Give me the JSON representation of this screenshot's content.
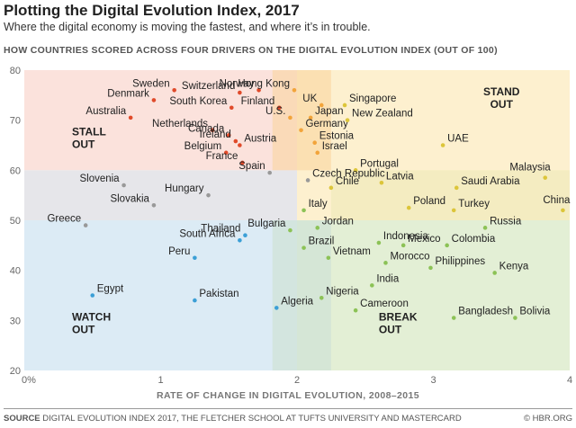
{
  "header": {
    "title": "Plotting the Digital Evolution Index, 2017",
    "subtitle": "Where the digital economy is moving the fastest, and where it’s in trouble.",
    "chart_heading": "HOW COUNTRIES SCORED ACROSS FOUR DRIVERS ON THE DIGITAL EVOLUTION INDEX (OUT OF 100)"
  },
  "footer": {
    "source_label": "SOURCE",
    "source_text": "DIGITAL EVOLUTION INDEX 2017, THE FLETCHER SCHOOL AT TUFTS UNIVERSITY AND MASTERCARD",
    "credit": "© HBR.ORG"
  },
  "colors": {
    "stall": "#fbe2dc",
    "stand": "#fdf0cf",
    "watch": "#dcebf5",
    "break": "#e3efd5",
    "red_dot": "#e04a2a",
    "orange_dot": "#f2a43a",
    "gold_dot": "#dcc53a",
    "green_dot": "#8cc256",
    "blue_dot": "#3b9fd6"
  },
  "chart_data": {
    "type": "scatter",
    "xlabel": "RATE OF CHANGE IN DIGITAL EVOLUTION, 2008–2015",
    "ylabel": "",
    "xlim": [
      0,
      4
    ],
    "ylim": [
      20,
      80
    ],
    "x_ticks": [
      "0%",
      "1",
      "2",
      "3",
      "4"
    ],
    "y_ticks": [
      "20",
      "30",
      "40",
      "50",
      "60",
      "70",
      "80"
    ],
    "quadrants": [
      "STALL OUT",
      "STAND OUT",
      "WATCH OUT",
      "BREAK OUT"
    ],
    "points": [
      {
        "name": "Sweden",
        "x": 1.1,
        "y": 76,
        "group": "stall"
      },
      {
        "name": "Switzerland",
        "x": 1.58,
        "y": 75.5,
        "group": "stall"
      },
      {
        "name": "Norway",
        "x": 1.72,
        "y": 76,
        "group": "stall"
      },
      {
        "name": "Denmark",
        "x": 0.95,
        "y": 74,
        "group": "stall"
      },
      {
        "name": "South Korea",
        "x": 1.52,
        "y": 72.5,
        "group": "stall"
      },
      {
        "name": "Finland",
        "x": 1.87,
        "y": 72.5,
        "group": "stall"
      },
      {
        "name": "Australia",
        "x": 0.78,
        "y": 70.5,
        "group": "stall"
      },
      {
        "name": "Netherlands",
        "x": 1.38,
        "y": 68,
        "group": "stall"
      },
      {
        "name": "Canada",
        "x": 1.5,
        "y": 67,
        "group": "stall"
      },
      {
        "name": "Ireland",
        "x": 1.55,
        "y": 65.8,
        "group": "stall"
      },
      {
        "name": "Austria",
        "x": 1.58,
        "y": 65,
        "group": "stall"
      },
      {
        "name": "Belgium",
        "x": 1.48,
        "y": 63.5,
        "group": "stall"
      },
      {
        "name": "France",
        "x": 1.6,
        "y": 61.5,
        "group": "stall"
      },
      {
        "name": "Hong Kong",
        "x": 1.98,
        "y": 76,
        "group": "stand"
      },
      {
        "name": "UK",
        "x": 2.18,
        "y": 73,
        "group": "stand"
      },
      {
        "name": "U.S.",
        "x": 1.95,
        "y": 70.5,
        "group": "stand"
      },
      {
        "name": "Japan",
        "x": 2.1,
        "y": 70.5,
        "group": "stand"
      },
      {
        "name": "Germany",
        "x": 2.03,
        "y": 68,
        "group": "stand"
      },
      {
        "name": "Estonia",
        "x": 2.13,
        "y": 65.5,
        "group": "stand"
      },
      {
        "name": "Israel",
        "x": 2.15,
        "y": 63.5,
        "group": "stand"
      },
      {
        "name": "Singapore",
        "x": 2.35,
        "y": 73,
        "group": "gold"
      },
      {
        "name": "New Zealand",
        "x": 2.37,
        "y": 70,
        "group": "gold"
      },
      {
        "name": "UAE",
        "x": 3.07,
        "y": 65,
        "group": "gold"
      },
      {
        "name": "Portugal",
        "x": 2.43,
        "y": 60,
        "group": "gold"
      },
      {
        "name": "Latvia",
        "x": 2.62,
        "y": 57.5,
        "group": "gold"
      },
      {
        "name": "Chile",
        "x": 2.25,
        "y": 56.5,
        "group": "gold"
      },
      {
        "name": "Malaysia",
        "x": 3.82,
        "y": 58.5,
        "group": "gold"
      },
      {
        "name": "Saudi Arabia",
        "x": 3.17,
        "y": 56.5,
        "group": "gold"
      },
      {
        "name": "Poland",
        "x": 2.82,
        "y": 52.5,
        "group": "gold"
      },
      {
        "name": "Turkey",
        "x": 3.15,
        "y": 52,
        "group": "gold"
      },
      {
        "name": "China",
        "x": 3.95,
        "y": 52,
        "group": "gold"
      },
      {
        "name": "Spain",
        "x": 1.8,
        "y": 59.5,
        "group": "gray"
      },
      {
        "name": "Czech Republic",
        "x": 2.08,
        "y": 58,
        "group": "gray"
      },
      {
        "name": "Slovenia",
        "x": 0.73,
        "y": 57,
        "group": "gray"
      },
      {
        "name": "Hungary",
        "x": 1.35,
        "y": 55,
        "group": "gray"
      },
      {
        "name": "Slovakia",
        "x": 0.95,
        "y": 53,
        "group": "gray"
      },
      {
        "name": "Greece",
        "x": 0.45,
        "y": 49,
        "group": "gray"
      },
      {
        "name": "Italy",
        "x": 2.05,
        "y": 52,
        "group": "green"
      },
      {
        "name": "Jordan",
        "x": 2.15,
        "y": 48.5,
        "group": "green"
      },
      {
        "name": "Bulgaria",
        "x": 1.95,
        "y": 48,
        "group": "green"
      },
      {
        "name": "Brazil",
        "x": 2.05,
        "y": 44.5,
        "group": "green"
      },
      {
        "name": "Russia",
        "x": 3.38,
        "y": 48.5,
        "group": "green"
      },
      {
        "name": "Indonesia",
        "x": 2.6,
        "y": 45.5,
        "group": "green"
      },
      {
        "name": "Mexico",
        "x": 2.78,
        "y": 45,
        "group": "green"
      },
      {
        "name": "Colombia",
        "x": 3.1,
        "y": 45,
        "group": "green"
      },
      {
        "name": "Vietnam",
        "x": 2.23,
        "y": 42.5,
        "group": "green"
      },
      {
        "name": "Morocco",
        "x": 2.65,
        "y": 41.5,
        "group": "green"
      },
      {
        "name": "Philippines",
        "x": 2.98,
        "y": 40.5,
        "group": "green"
      },
      {
        "name": "Kenya",
        "x": 3.45,
        "y": 39.5,
        "group": "green"
      },
      {
        "name": "India",
        "x": 2.55,
        "y": 37,
        "group": "green"
      },
      {
        "name": "Nigeria",
        "x": 2.18,
        "y": 34.5,
        "group": "green"
      },
      {
        "name": "Cameroon",
        "x": 2.43,
        "y": 32,
        "group": "green"
      },
      {
        "name": "Bangladesh",
        "x": 3.15,
        "y": 30.5,
        "group": "green"
      },
      {
        "name": "Bolivia",
        "x": 3.6,
        "y": 30.5,
        "group": "green"
      },
      {
        "name": "Thailand",
        "x": 1.62,
        "y": 47,
        "group": "blue"
      },
      {
        "name": "South Africa",
        "x": 1.58,
        "y": 46,
        "group": "blue"
      },
      {
        "name": "Peru",
        "x": 1.25,
        "y": 42.5,
        "group": "blue"
      },
      {
        "name": "Egypt",
        "x": 0.5,
        "y": 35,
        "group": "blue"
      },
      {
        "name": "Pakistan",
        "x": 1.25,
        "y": 34,
        "group": "blue"
      },
      {
        "name": "Algeria",
        "x": 1.85,
        "y": 32.5,
        "group": "blue"
      }
    ]
  }
}
